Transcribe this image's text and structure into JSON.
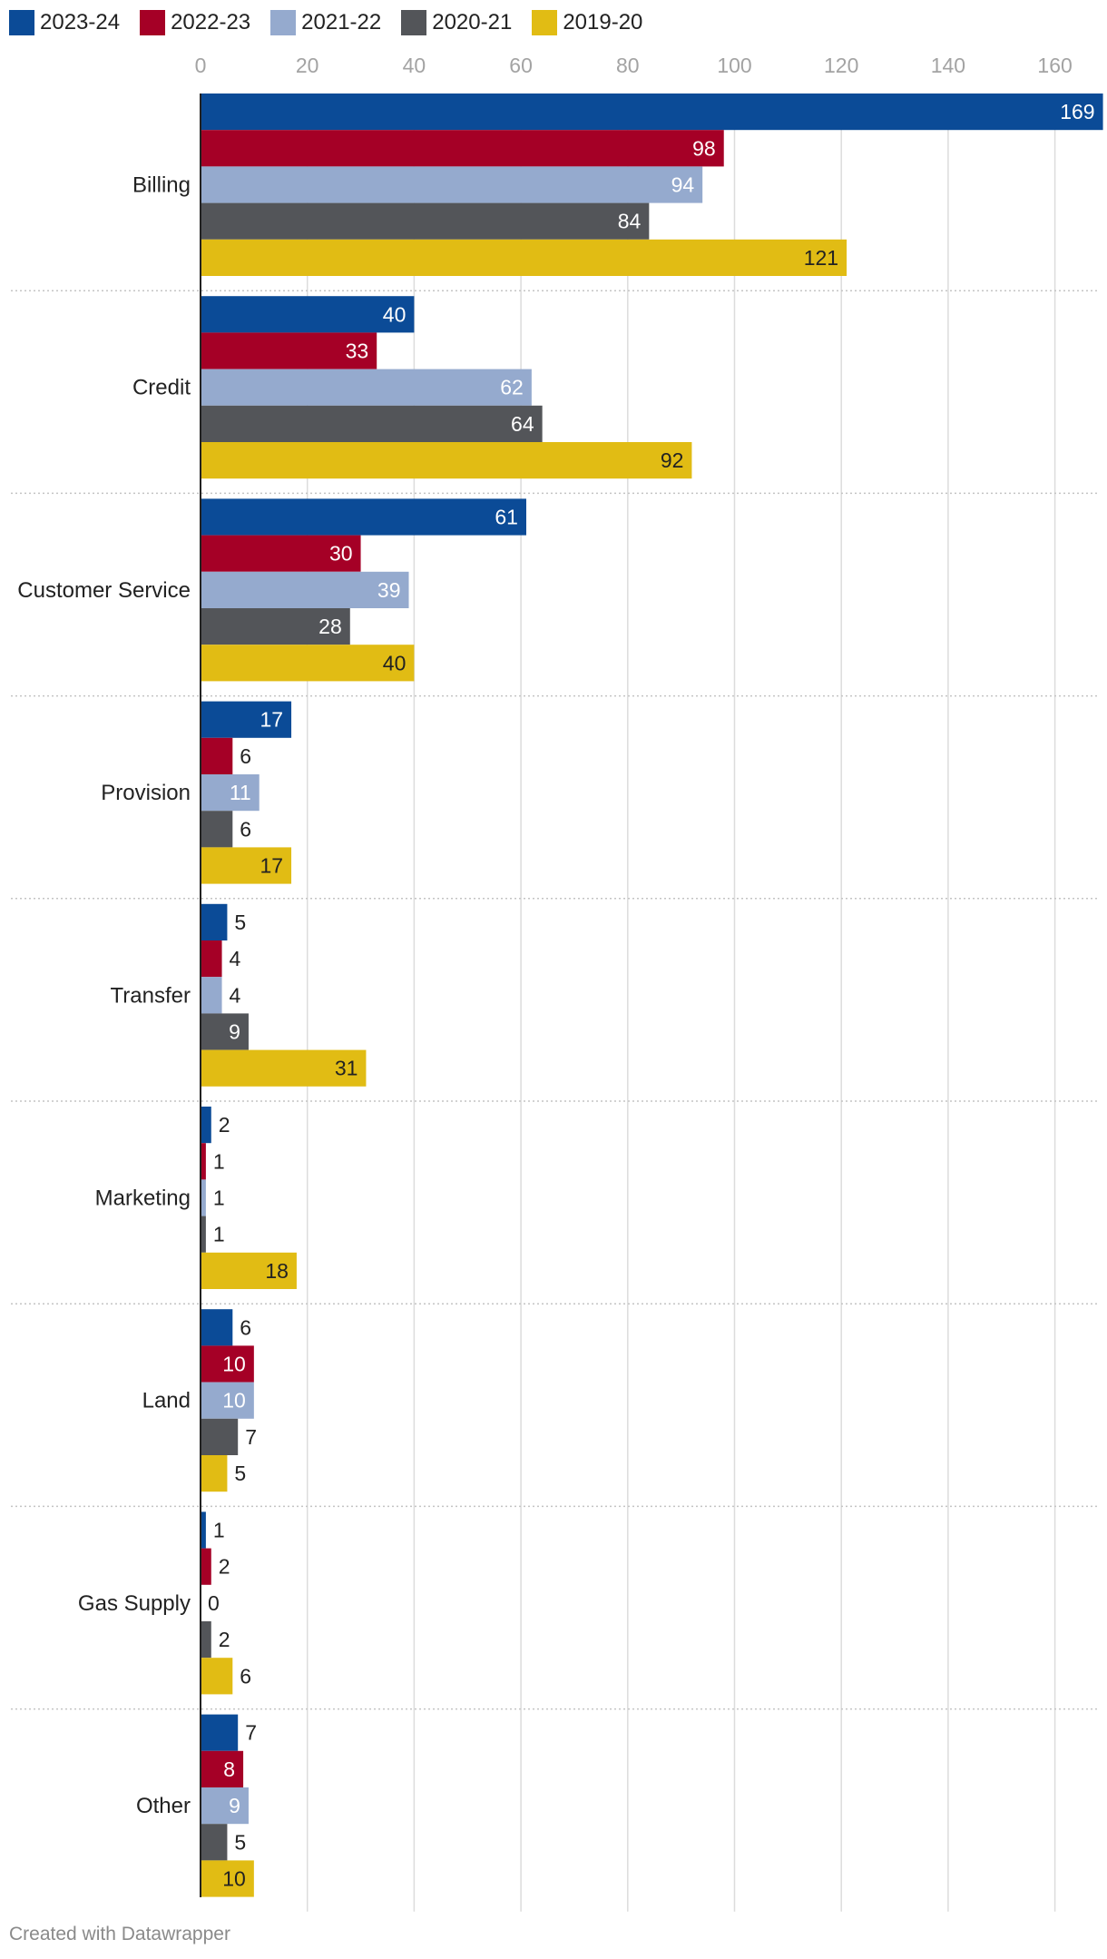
{
  "legend": [
    {
      "label": "2023-24",
      "color": "#0b4b97"
    },
    {
      "label": "2022-23",
      "color": "#a50026"
    },
    {
      "label": "2021-22",
      "color": "#95aace"
    },
    {
      "label": "2020-21",
      "color": "#535559"
    },
    {
      "label": "2019-20",
      "color": "#e1bc14"
    }
  ],
  "chart_data": {
    "type": "bar",
    "orientation": "horizontal",
    "title": "",
    "xlabel": "",
    "ylabel": "",
    "xlim": [
      0,
      169
    ],
    "x_ticks": [
      0,
      20,
      40,
      60,
      80,
      100,
      120,
      140,
      160
    ],
    "x_tick_labels": [
      "0",
      "20",
      "40",
      "60",
      "80",
      "100",
      "120",
      "140",
      "160"
    ],
    "categories": [
      "Billing",
      "Credit",
      "Customer Service",
      "Provision",
      "Transfer",
      "Marketing",
      "Land",
      "Gas Supply",
      "Other"
    ],
    "series": [
      {
        "name": "2023-24",
        "color": "#0b4b97",
        "label_color": "#ffffff",
        "values": [
          169,
          40,
          61,
          17,
          5,
          2,
          6,
          1,
          7
        ]
      },
      {
        "name": "2022-23",
        "color": "#a50026",
        "label_color": "#ffffff",
        "values": [
          98,
          33,
          30,
          6,
          4,
          1,
          10,
          2,
          8
        ]
      },
      {
        "name": "2021-22",
        "color": "#95aace",
        "label_color": "#ffffff",
        "values": [
          94,
          62,
          39,
          11,
          4,
          1,
          10,
          0,
          9
        ]
      },
      {
        "name": "2020-21",
        "color": "#535559",
        "label_color": "#ffffff",
        "values": [
          84,
          64,
          28,
          6,
          9,
          1,
          7,
          2,
          5
        ]
      },
      {
        "name": "2019-20",
        "color": "#e1bc14",
        "label_color": "#222222",
        "values": [
          121,
          92,
          40,
          17,
          31,
          18,
          5,
          6,
          10
        ]
      }
    ],
    "grid": true,
    "legend_position": "top-left"
  },
  "footer": {
    "credit": "Created with Datawrapper"
  }
}
